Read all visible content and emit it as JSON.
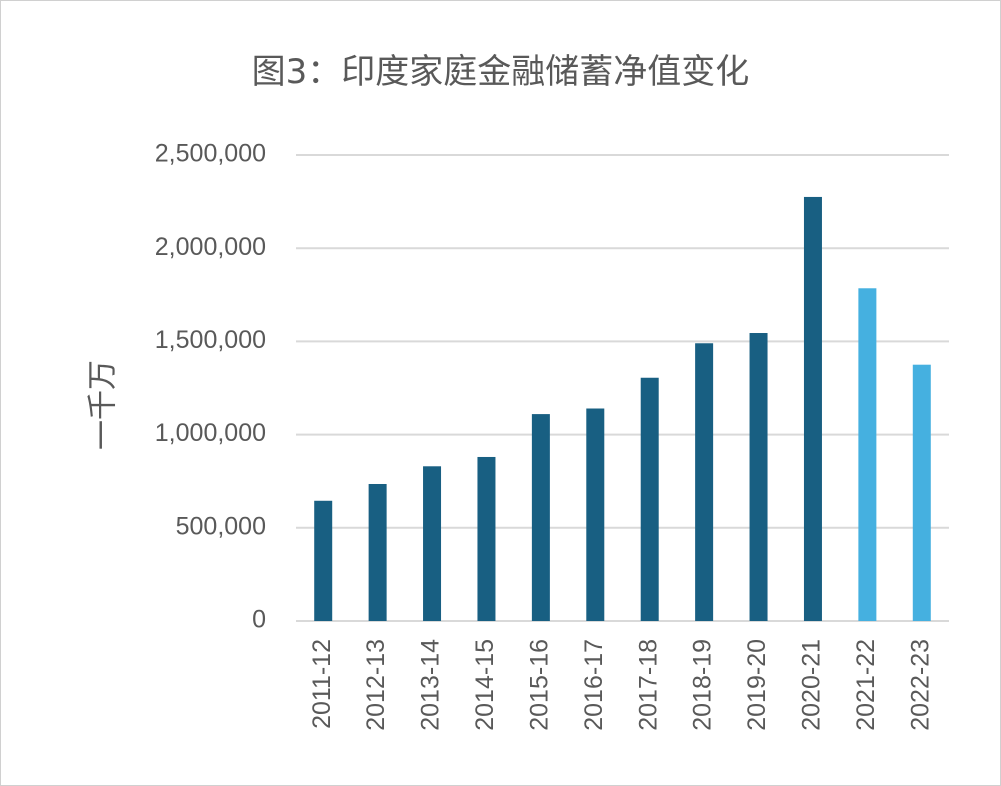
{
  "chart_data": {
    "type": "bar",
    "title": "图3：印度家庭金融储蓄净值变化",
    "ylabel": "一千万",
    "xlabel": "",
    "ylim": [
      0,
      2500000
    ],
    "yticks": [
      0,
      500000,
      1000000,
      1500000,
      2000000,
      2500000
    ],
    "ytick_labels": [
      "0",
      "500,000",
      "1,000,000",
      "1,500,000",
      "2,000,000",
      "2,500,000"
    ],
    "grid": true,
    "categories": [
      "2011-12",
      "2012-13",
      "2013-14",
      "2014-15",
      "2015-16",
      "2016-17",
      "2017-18",
      "2018-19",
      "2019-20",
      "2020-21",
      "2021-22",
      "2022-23"
    ],
    "values": [
      645000,
      735000,
      830000,
      880000,
      1110000,
      1140000,
      1305000,
      1490000,
      1545000,
      2275000,
      1785000,
      1375000
    ],
    "colors": [
      "#185f82",
      "#185f82",
      "#185f82",
      "#185f82",
      "#185f82",
      "#185f82",
      "#185f82",
      "#185f82",
      "#185f82",
      "#185f82",
      "#45b0e0",
      "#45b0e0"
    ]
  }
}
